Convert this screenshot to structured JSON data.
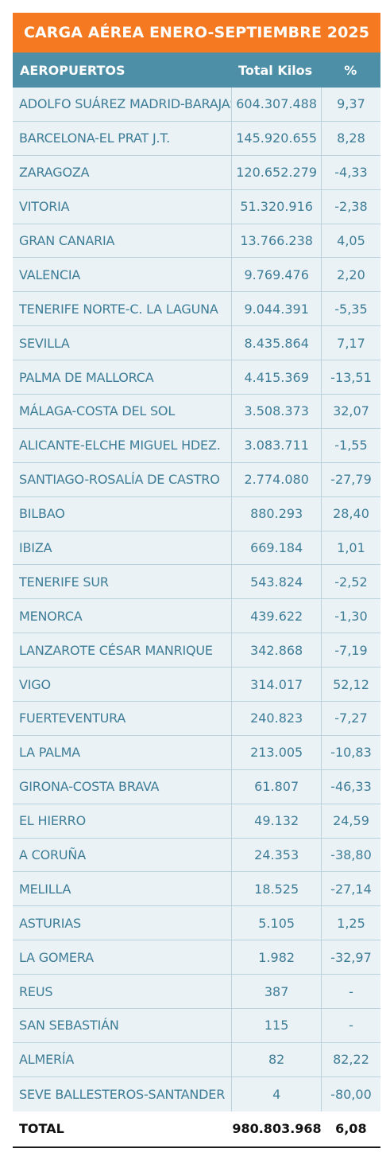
{
  "title": "CARGA AÉREA ENERO-SEPTIEMBRE 2025",
  "colors": {
    "title_bg": "#f47920",
    "header_bg": "#4d8fa6",
    "row_bg": "#eaf2f5",
    "row_text": "#3e7d97"
  },
  "table": {
    "headers": [
      "AEROPUERTOS",
      "Total Kilos",
      "%"
    ],
    "rows": [
      [
        "ADOLFO SUÁREZ MADRID-BARAJAS",
        "604.307.488",
        "9,37"
      ],
      [
        "BARCELONA-EL PRAT J.T.",
        "145.920.655",
        "8,28"
      ],
      [
        "ZARAGOZA",
        "120.652.279",
        "-4,33"
      ],
      [
        "VITORIA",
        "51.320.916",
        "-2,38"
      ],
      [
        "GRAN CANARIA",
        "13.766.238",
        "4,05"
      ],
      [
        "VALENCIA",
        "9.769.476",
        "2,20"
      ],
      [
        "TENERIFE NORTE-C. LA LAGUNA",
        "9.044.391",
        "-5,35"
      ],
      [
        "SEVILLA",
        "8.435.864",
        "7,17"
      ],
      [
        "PALMA DE MALLORCA",
        "4.415.369",
        "-13,51"
      ],
      [
        "MÁLAGA-COSTA DEL SOL",
        "3.508.373",
        "32,07"
      ],
      [
        "ALICANTE-ELCHE MIGUEL HDEZ.",
        "3.083.711",
        "-1,55"
      ],
      [
        "SANTIAGO-ROSALÍA DE CASTRO",
        "2.774.080",
        "-27,79"
      ],
      [
        "BILBAO",
        "880.293",
        "28,40"
      ],
      [
        "IBIZA",
        "669.184",
        "1,01"
      ],
      [
        "TENERIFE SUR",
        "543.824",
        "-2,52"
      ],
      [
        "MENORCA",
        "439.622",
        "-1,30"
      ],
      [
        "LANZAROTE CÉSAR MANRIQUE",
        "342.868",
        "-7,19"
      ],
      [
        "VIGO",
        "314.017",
        "52,12"
      ],
      [
        "FUERTEVENTURA",
        "240.823",
        "-7,27"
      ],
      [
        "LA PALMA",
        "213.005",
        "-10,83"
      ],
      [
        "GIRONA-COSTA BRAVA",
        "61.807",
        "-46,33"
      ],
      [
        "EL HIERRO",
        "49.132",
        "24,59"
      ],
      [
        "A CORUÑA",
        "24.353",
        "-38,80"
      ],
      [
        "MELILLA",
        "18.525",
        "-27,14"
      ],
      [
        "ASTURIAS",
        "5.105",
        "1,25"
      ],
      [
        "LA GOMERA",
        "1.982",
        "-32,97"
      ],
      [
        "REUS",
        "387",
        "-"
      ],
      [
        "SAN SEBASTIÁN",
        "115",
        "-"
      ],
      [
        "ALMERÍA",
        "82",
        "82,22"
      ],
      [
        "SEVE BALLESTEROS-SANTANDER",
        "4",
        "-80,00"
      ]
    ],
    "total": [
      "TOTAL",
      "980.803.968",
      "6,08"
    ]
  }
}
